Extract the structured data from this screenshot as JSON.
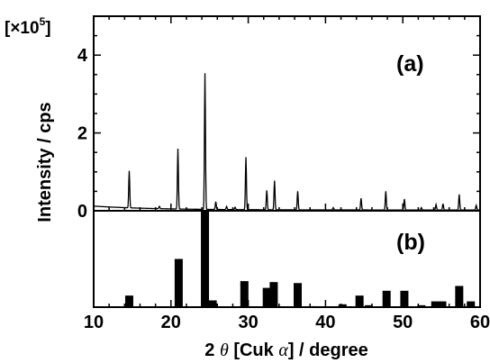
{
  "chart_data": [
    {
      "panel": "(a)",
      "type": "line",
      "multiplier": "[×10",
      "multiplier_exp": "5",
      "multiplier_close": "]",
      "ylabel": "Intensity / cps",
      "ylim": [
        0,
        5
      ],
      "yticks": [
        "0",
        "2",
        "4"
      ],
      "xlim": [
        10,
        60
      ],
      "baseline": 0.1,
      "peaks": [
        {
          "x": 14.6,
          "y": 0.95
        },
        {
          "x": 18.5,
          "y": 0.06
        },
        {
          "x": 20.9,
          "y": 1.55
        },
        {
          "x": 24.4,
          "y": 3.5
        },
        {
          "x": 25.8,
          "y": 0.2
        },
        {
          "x": 27.2,
          "y": 0.08
        },
        {
          "x": 28.3,
          "y": 0.06
        },
        {
          "x": 29.7,
          "y": 1.35
        },
        {
          "x": 32.4,
          "y": 0.5
        },
        {
          "x": 33.4,
          "y": 0.75
        },
        {
          "x": 36.4,
          "y": 0.48
        },
        {
          "x": 41.0,
          "y": 0.06
        },
        {
          "x": 44.6,
          "y": 0.3
        },
        {
          "x": 47.8,
          "y": 0.48
        },
        {
          "x": 50.2,
          "y": 0.28
        },
        {
          "x": 52.4,
          "y": 0.06
        },
        {
          "x": 54.3,
          "y": 0.14
        },
        {
          "x": 55.2,
          "y": 0.16
        },
        {
          "x": 57.3,
          "y": 0.4
        },
        {
          "x": 59.5,
          "y": 0.12
        }
      ]
    },
    {
      "panel": "(b)",
      "type": "bar",
      "xlim": [
        10,
        60
      ],
      "ylim": [
        0,
        100
      ],
      "bars": [
        {
          "x": 14.6,
          "value": 12
        },
        {
          "x": 21.0,
          "value": 50
        },
        {
          "x": 24.4,
          "value": 100
        },
        {
          "x": 25.4,
          "value": 7
        },
        {
          "x": 29.5,
          "value": 27
        },
        {
          "x": 32.4,
          "value": 20
        },
        {
          "x": 33.3,
          "value": 26
        },
        {
          "x": 36.4,
          "value": 25
        },
        {
          "x": 38.3,
          "value": 1
        },
        {
          "x": 42.2,
          "value": 3
        },
        {
          "x": 44.4,
          "value": 12
        },
        {
          "x": 45.6,
          "value": 2
        },
        {
          "x": 47.9,
          "value": 17
        },
        {
          "x": 50.2,
          "value": 17
        },
        {
          "x": 52.4,
          "value": 2
        },
        {
          "x": 54.2,
          "value": 6
        },
        {
          "x": 55.1,
          "value": 6
        },
        {
          "x": 57.3,
          "value": 22
        },
        {
          "x": 58.8,
          "value": 6
        }
      ],
      "xticks": [
        "10",
        "20",
        "30",
        "40",
        "50",
        "60"
      ],
      "xlabel_pre": "2 ",
      "xlabel_theta": "θ",
      "xlabel_mid": " [Cuk ",
      "xlabel_alpha": "α",
      "xlabel_post": "] / degree"
    }
  ]
}
